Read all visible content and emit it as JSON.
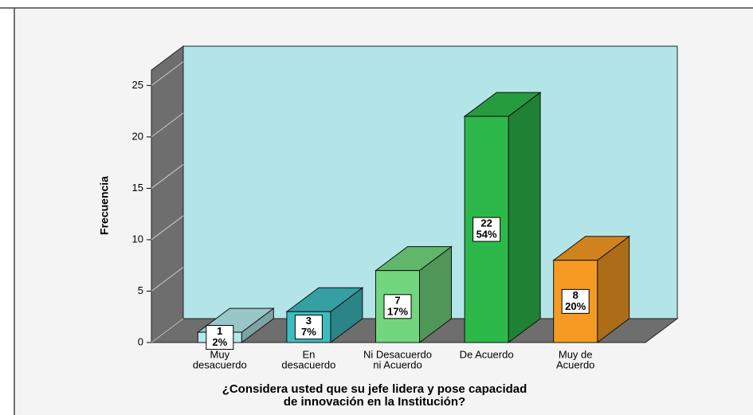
{
  "chart_data": {
    "type": "bar3d",
    "ylabel": "Frecuencia",
    "xlabel": [
      "¿Considera usted que su jefe lidera y pose capacidad",
      "de innovación en la Institución?"
    ],
    "categories": [
      [
        "Muy",
        "desacuerdo"
      ],
      [
        "En",
        "desacuerdo"
      ],
      [
        "Ni Desacuerdo",
        "ni Acuerdo"
      ],
      [
        "De Acuerdo"
      ],
      [
        "Muy de",
        "Acuerdo"
      ]
    ],
    "values": [
      1,
      3,
      7,
      22,
      8
    ],
    "percent_labels": [
      "2%",
      "7%",
      "17%",
      "54%",
      "20%"
    ],
    "colors": [
      "#b4e9ea",
      "#3dbcc0",
      "#72d67e",
      "#2db84a",
      "#f59a22"
    ],
    "ylim": [
      0,
      26.5
    ],
    "yticks": [
      0,
      5,
      10,
      15,
      20,
      25
    ],
    "grid": true
  }
}
